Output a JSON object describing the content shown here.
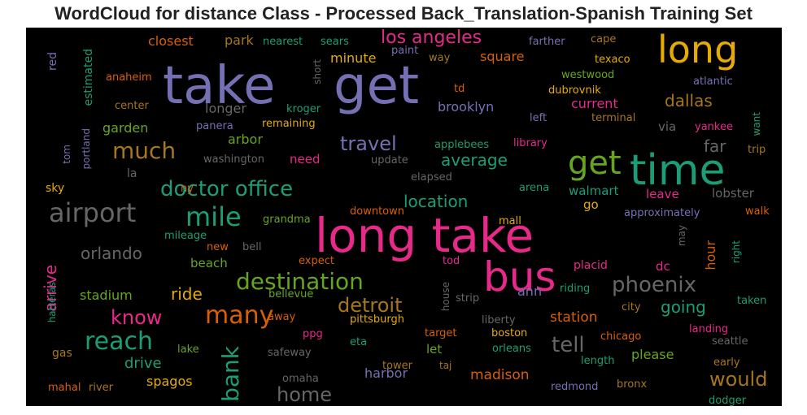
{
  "title": "WordCloud for distance Class - Processed Back_Translation-Spanish Training Set",
  "background": "#000000",
  "words": [
    {
      "text": "long take",
      "color": "#e7298a"
    },
    {
      "text": "take",
      "color": "#7570b3"
    },
    {
      "text": "get",
      "color": "#7570b3"
    },
    {
      "text": "long",
      "color": "#e6ab02"
    },
    {
      "text": "time",
      "color": "#1b9e77"
    },
    {
      "text": "bus",
      "color": "#e7298a"
    },
    {
      "text": "get",
      "color": "#66a61e"
    },
    {
      "text": "airport",
      "color": "#666666"
    },
    {
      "text": "mile",
      "color": "#1b9e77"
    },
    {
      "text": "destination",
      "color": "#66a61e"
    },
    {
      "text": "reach",
      "color": "#1b9e77"
    },
    {
      "text": "many",
      "color": "#d95f02"
    },
    {
      "text": "bank",
      "color": "#1b9e77"
    },
    {
      "text": "doctor office",
      "color": "#1b9e77"
    },
    {
      "text": "much",
      "color": "#a6761d"
    },
    {
      "text": "phoenix",
      "color": "#666666"
    },
    {
      "text": "detroit",
      "color": "#a6761d"
    },
    {
      "text": "tell",
      "color": "#666666"
    },
    {
      "text": "would",
      "color": "#a6761d"
    },
    {
      "text": "home",
      "color": "#666666"
    },
    {
      "text": "know",
      "color": "#e7298a"
    },
    {
      "text": "travel",
      "color": "#7570b3"
    },
    {
      "text": "los angeles",
      "color": "#e7298a"
    },
    {
      "text": "orlando",
      "color": "#666666"
    },
    {
      "text": "arrive",
      "color": "#e7298a"
    },
    {
      "text": "ride",
      "color": "#e6ab02"
    },
    {
      "text": "drive",
      "color": "#1b9e77"
    },
    {
      "text": "average",
      "color": "#1b9e77"
    },
    {
      "text": "location",
      "color": "#1b9e77"
    },
    {
      "text": "going",
      "color": "#1b9e77"
    },
    {
      "text": "dallas",
      "color": "#a6761d"
    },
    {
      "text": "far",
      "color": "#666666"
    },
    {
      "text": "madison",
      "color": "#d95f02"
    },
    {
      "text": "station",
      "color": "#d95f02"
    },
    {
      "text": "please",
      "color": "#66a61e"
    },
    {
      "text": "harbor",
      "color": "#7570b3"
    },
    {
      "text": "brooklyn",
      "color": "#7570b3"
    },
    {
      "text": "longer",
      "color": "#666666"
    },
    {
      "text": "square",
      "color": "#d95f02"
    },
    {
      "text": "current",
      "color": "#e7298a"
    },
    {
      "text": "walmart",
      "color": "#1b9e77"
    },
    {
      "text": "leave",
      "color": "#e7298a"
    },
    {
      "text": "lobster",
      "color": "#666666"
    },
    {
      "text": "arbor",
      "color": "#66a61e"
    },
    {
      "text": "garden",
      "color": "#66a61e"
    },
    {
      "text": "minute",
      "color": "#e6ab02"
    },
    {
      "text": "closest",
      "color": "#d95f02"
    },
    {
      "text": "park",
      "color": "#a6761d"
    },
    {
      "text": "hour",
      "color": "#d95f02"
    },
    {
      "text": "stadium",
      "color": "#66a61e"
    },
    {
      "text": "beach",
      "color": "#66a61e"
    },
    {
      "text": "spagos",
      "color": "#e6ab02"
    },
    {
      "text": "via",
      "color": "#666666"
    },
    {
      "text": "need",
      "color": "#e7298a"
    },
    {
      "text": "ann",
      "color": "#7570b3"
    },
    {
      "text": "let",
      "color": "#66a61e"
    },
    {
      "text": "dc",
      "color": "#e7298a"
    },
    {
      "text": "go",
      "color": "#e6ab02"
    },
    {
      "text": "estimated",
      "color": "#1b9e77"
    },
    {
      "text": "sky",
      "color": "#e6ab02"
    },
    {
      "text": "la",
      "color": "#666666"
    },
    {
      "text": "gas",
      "color": "#a6761d"
    },
    {
      "text": "red",
      "color": "#7570b3"
    },
    {
      "text": "placid",
      "color": "#e7298a"
    },
    {
      "text": "tower",
      "color": "#a6761d"
    },
    {
      "text": "redmond",
      "color": "#7570b3"
    },
    {
      "text": "dodger",
      "color": "#1b9e77"
    },
    {
      "text": "riding",
      "color": "#1b9e77"
    },
    {
      "text": "boston",
      "color": "#e6ab02"
    },
    {
      "text": "pittsburgh",
      "color": "#e6ab02"
    },
    {
      "text": "orleans",
      "color": "#1b9e77"
    },
    {
      "text": "grandma",
      "color": "#66a61e"
    },
    {
      "text": "mall",
      "color": "#e6ab02"
    },
    {
      "text": "approximately",
      "color": "#7570b3"
    },
    {
      "text": "walk",
      "color": "#d95f02"
    },
    {
      "text": "lake",
      "color": "#66a61e"
    },
    {
      "text": "safeway",
      "color": "#666666"
    },
    {
      "text": "eta",
      "color": "#1b9e77"
    },
    {
      "text": "taj",
      "color": "#a6761d"
    },
    {
      "text": "length",
      "color": "#1b9e77"
    },
    {
      "text": "chicago",
      "color": "#d95f02"
    },
    {
      "text": "seattle",
      "color": "#666666"
    },
    {
      "text": "early",
      "color": "#a6761d"
    },
    {
      "text": "target",
      "color": "#d95f02"
    },
    {
      "text": "liberty",
      "color": "#666666"
    },
    {
      "text": "city",
      "color": "#a6761d"
    },
    {
      "text": "landing",
      "color": "#e7298a"
    },
    {
      "text": "taken",
      "color": "#1b9e77"
    },
    {
      "text": "strip",
      "color": "#666666"
    },
    {
      "text": "house",
      "color": "#666666"
    },
    {
      "text": "away",
      "color": "#d95f02"
    },
    {
      "text": "bellevue",
      "color": "#66a61e"
    },
    {
      "text": "expect",
      "color": "#d95f02"
    },
    {
      "text": "tod",
      "color": "#e7298a"
    },
    {
      "text": "ppg",
      "color": "#e7298a"
    },
    {
      "text": "omaha",
      "color": "#666666"
    },
    {
      "text": "mahal",
      "color": "#d95f02"
    },
    {
      "text": "river",
      "color": "#a6761d"
    },
    {
      "text": "hatteras",
      "color": "#1b9e77"
    },
    {
      "text": "bronx",
      "color": "#a6761d"
    },
    {
      "text": "new",
      "color": "#d95f02"
    },
    {
      "text": "bell",
      "color": "#666666"
    },
    {
      "text": "mileage",
      "color": "#1b9e77"
    },
    {
      "text": "downtown",
      "color": "#d95f02"
    },
    {
      "text": "arena",
      "color": "#1b9e77"
    },
    {
      "text": "may",
      "color": "#666666"
    },
    {
      "text": "right",
      "color": "#1b9e77"
    },
    {
      "text": "ny",
      "color": "#d95f02"
    },
    {
      "text": "washington",
      "color": "#666666"
    },
    {
      "text": "update",
      "color": "#666666"
    },
    {
      "text": "elapsed",
      "color": "#666666"
    },
    {
      "text": "applebees",
      "color": "#1b9e77"
    },
    {
      "text": "library",
      "color": "#e7298a"
    },
    {
      "text": "portland",
      "color": "#7570b3"
    },
    {
      "text": "tom",
      "color": "#7570b3"
    },
    {
      "text": "center",
      "color": "#a6761d"
    },
    {
      "text": "panera",
      "color": "#7570b3"
    },
    {
      "text": "remaining",
      "color": "#e6ab02"
    },
    {
      "text": "kroger",
      "color": "#1b9e77"
    },
    {
      "text": "short",
      "color": "#666666"
    },
    {
      "text": "td",
      "color": "#d95f02"
    },
    {
      "text": "left",
      "color": "#7570b3"
    },
    {
      "text": "terminal",
      "color": "#a6761d"
    },
    {
      "text": "yankee",
      "color": "#e7298a"
    },
    {
      "text": "want",
      "color": "#1b9e77"
    },
    {
      "text": "trip",
      "color": "#a6761d"
    },
    {
      "text": "anaheim",
      "color": "#d95f02"
    },
    {
      "text": "nearest",
      "color": "#1b9e77"
    },
    {
      "text": "sears",
      "color": "#1b9e77"
    },
    {
      "text": "paint",
      "color": "#7570b3"
    },
    {
      "text": "way",
      "color": "#a6761d"
    },
    {
      "text": "farther",
      "color": "#7570b3"
    },
    {
      "text": "cape",
      "color": "#a6761d"
    },
    {
      "text": "texaco",
      "color": "#e6ab02"
    },
    {
      "text": "westwood",
      "color": "#66a61e"
    },
    {
      "text": "dubrovnik",
      "color": "#e6ab02"
    },
    {
      "text": "atlantic",
      "color": "#7570b3"
    }
  ]
}
